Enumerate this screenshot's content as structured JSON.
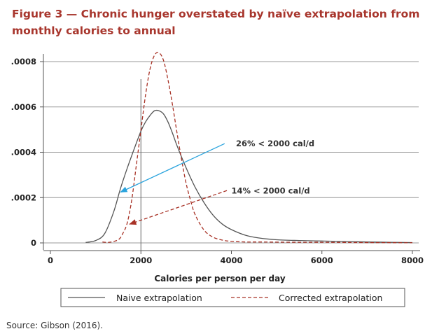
{
  "figure": {
    "title": "Figure 3 — Chronic hunger overstated by naïve extrapolation from monthly calories to annual",
    "source": "Source: Gibson (2016)."
  },
  "chart_data": {
    "type": "line",
    "xlabel": "Calories per person per day",
    "ylabel": "",
    "xlim": [
      -200,
      8150
    ],
    "ylim": [
      0,
      0.00085
    ],
    "xticks": [
      0,
      2000,
      4000,
      6000,
      8000
    ],
    "xtick_labels": [
      "0",
      "2000",
      "4000",
      "6000",
      "8000"
    ],
    "yticks": [
      0,
      0.0002,
      0.0004,
      0.0006,
      0.0008
    ],
    "ytick_labels": [
      "0",
      ".0002",
      ".0004",
      ".0006",
      ".0008"
    ],
    "grid": "horizontal",
    "legend_position": "bottom",
    "series": [
      {
        "name": "Naive extrapolation",
        "color": "#555555",
        "style": "solid",
        "x": [
          780,
          1000,
          1200,
          1400,
          1550,
          1700,
          1850,
          2000,
          2100,
          2200,
          2300,
          2400,
          2500,
          2600,
          2700,
          2800,
          3000,
          3200,
          3400,
          3600,
          3800,
          4000,
          4300,
          4600,
          5000,
          5500,
          6000,
          6500,
          7000,
          7500,
          8000
        ],
        "y": [
          2.1e-06,
          1.04e-05,
          4.14e-05,
          0.000138,
          0.000241,
          0.000331,
          0.000414,
          0.000493,
          0.000533,
          0.000562,
          0.000583,
          0.000583,
          0.000569,
          0.000533,
          0.000483,
          0.000428,
          0.000331,
          0.000245,
          0.000176,
          0.000121,
          8.28e-05,
          5.87e-05,
          3.45e-05,
          2.21e-05,
          1.38e-05,
          1.04e-05,
          8.3e-06,
          6.2e-06,
          4.1e-06,
          2.8e-06,
          1.4e-06
        ]
      },
      {
        "name": "Corrected extrapolation",
        "color": "#a83226",
        "style": "dashed",
        "x": [
          1150,
          1300,
          1500,
          1600,
          1700,
          1800,
          1900,
          2000,
          2100,
          2200,
          2300,
          2400,
          2500,
          2600,
          2700,
          2800,
          2900,
          3000,
          3100,
          3200,
          3400,
          3600,
          3800,
          4000,
          4300,
          4600,
          5000,
          5500,
          6000,
          6500,
          7000,
          8000
        ],
        "y": [
          4.1e-06,
          2.8e-06,
          1.38e-05,
          4.14e-05,
          8.97e-05,
          0.000193,
          0.000345,
          0.000497,
          0.000649,
          0.000766,
          0.000828,
          0.000839,
          0.000805,
          0.000718,
          0.000607,
          0.000483,
          0.000366,
          0.000262,
          0.000186,
          0.000124,
          5.52e-05,
          2.48e-05,
          1.24e-05,
          6.9e-06,
          4.1e-06,
          4.1e-06,
          3.4e-06,
          2.8e-06,
          2.8e-06,
          2.1e-06,
          1.4e-06,
          7e-07
        ]
      }
    ],
    "reference_line": {
      "x": 2000,
      "color": "#666666"
    },
    "annotations": [
      {
        "text": "26% < 2000 cal/d",
        "color": "#29a3dd",
        "text_at": [
          4100,
          0.000426
        ],
        "arrow_from": [
          3850,
          0.000438
        ],
        "arrow_to": [
          1550,
          0.000224
        ]
      },
      {
        "text": "14% < 2000 cal/d",
        "color": "#a83226",
        "text_at": [
          4000,
          0.000218
        ],
        "arrow_from": [
          3900,
          0.000231
        ],
        "arrow_to": [
          1750,
          8.28e-05
        ]
      }
    ]
  }
}
